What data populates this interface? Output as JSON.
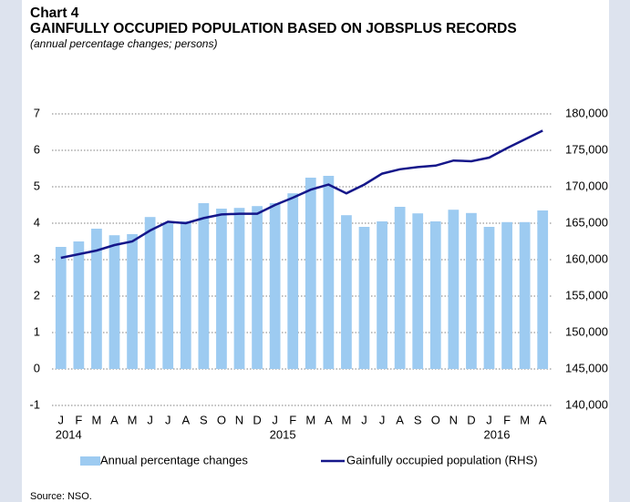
{
  "chart_data": {
    "type": "bar_line",
    "label": "Chart 4",
    "title": "GAINFULLY OCCUPIED POPULATION BASED ON JOBSPLUS RECORDS",
    "subtitle": "(annual percentage changes; persons)",
    "source": "Source: NSO.",
    "categories": [
      "J",
      "F",
      "M",
      "A",
      "M",
      "J",
      "J",
      "A",
      "S",
      "O",
      "N",
      "D",
      "J",
      "F",
      "M",
      "A",
      "M",
      "J",
      "J",
      "A",
      "S",
      "O",
      "N",
      "D",
      "J",
      "F",
      "M",
      "A"
    ],
    "years": [
      "2014",
      null,
      null,
      null,
      null,
      null,
      null,
      null,
      null,
      null,
      null,
      null,
      "2015",
      null,
      null,
      null,
      null,
      null,
      null,
      null,
      null,
      null,
      null,
      null,
      "2016",
      null,
      null,
      null
    ],
    "series": [
      {
        "name": "Annual percentage changes",
        "type": "bar",
        "color": "#9dcbf1",
        "values": [
          3.35,
          3.5,
          3.85,
          3.67,
          3.7,
          4.17,
          4.02,
          4.05,
          4.55,
          4.4,
          4.42,
          4.47,
          4.55,
          4.82,
          5.25,
          5.3,
          4.22,
          3.9,
          4.05,
          4.45,
          4.27,
          4.05,
          4.37,
          4.28,
          3.9,
          4.03,
          4.03,
          4.35
        ]
      },
      {
        "name": "Gainfully occupied population (RHS)",
        "type": "line",
        "color": "#15178a",
        "axis": "y2",
        "values": [
          160250,
          160750,
          161250,
          162000,
          162500,
          164000,
          165200,
          165000,
          165700,
          166200,
          166300,
          166300,
          167500,
          168500,
          169600,
          170300,
          169100,
          170300,
          171800,
          172400,
          172700,
          172900,
          173600,
          173500,
          174000,
          175300,
          176500,
          177700
        ]
      }
    ],
    "ylim": [
      -1,
      7
    ],
    "yticks": [
      -1,
      0,
      1,
      2,
      3,
      4,
      5,
      6,
      7
    ],
    "y2lim": [
      140000,
      180000
    ],
    "y2ticks": [
      {
        "value": 140000,
        "label": "140,000"
      },
      {
        "value": 145000,
        "label": "145,000"
      },
      {
        "value": 150000,
        "label": "150,000"
      },
      {
        "value": 155000,
        "label": "155,000"
      },
      {
        "value": 160000,
        "label": "160,000"
      },
      {
        "value": 165000,
        "label": "165,000"
      },
      {
        "value": 170000,
        "label": "170,000"
      },
      {
        "value": 175000,
        "label": "175,000"
      },
      {
        "value": 180000,
        "label": "180,000"
      }
    ],
    "grid": true
  }
}
